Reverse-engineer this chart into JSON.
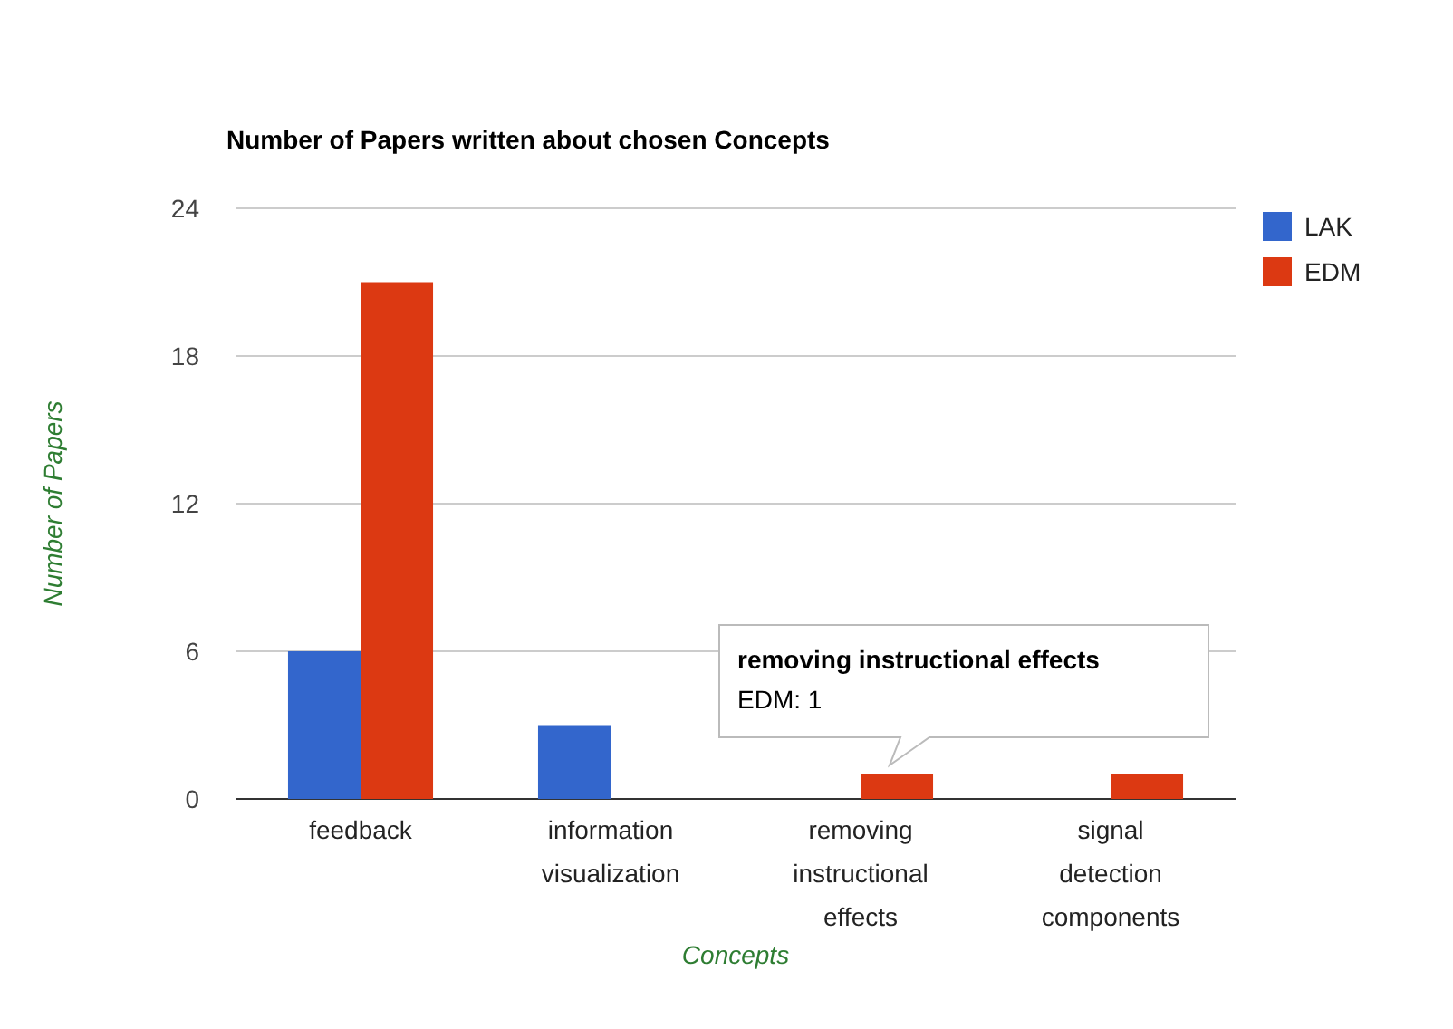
{
  "chart_data": {
    "type": "bar",
    "title": "Number of Papers written about chosen Concepts",
    "xlabel": "Concepts",
    "ylabel": "Number of Papers",
    "categories": [
      "feedback",
      "information visualization",
      "removing instructional effects",
      "signal detection components"
    ],
    "series": [
      {
        "name": "LAK",
        "color": "#3366cc",
        "values": [
          6,
          3,
          0,
          0
        ]
      },
      {
        "name": "EDM",
        "color": "#dc3912",
        "values": [
          21,
          0,
          1,
          1
        ]
      }
    ],
    "ylim": [
      0,
      24
    ],
    "yticks": [
      0,
      6,
      12,
      18,
      24
    ],
    "grid": "y",
    "legend": "top right",
    "annotations": [
      {
        "text": "removing instructional effects\nEDM: 1",
        "x": "removing instructional effects",
        "y": 1
      }
    ]
  }
}
